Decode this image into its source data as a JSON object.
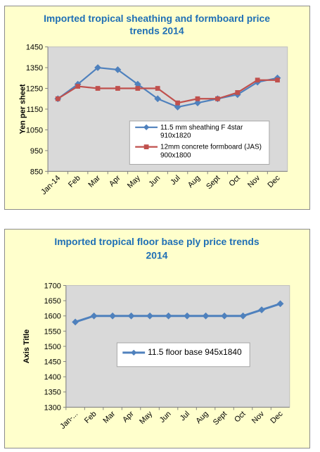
{
  "chart_data": [
    {
      "type": "line",
      "title_lines": [
        "Imported tropical sheathing and formboard price",
        "trends 2014"
      ],
      "ylabel": "Yen per sheet",
      "xlabel": "",
      "categories": [
        "Jan-14",
        "Feb",
        "Mar",
        "Apr",
        "May",
        "Jun",
        "Jul",
        "Aug",
        "Sept",
        "Oct",
        "Nov",
        "Dec"
      ],
      "ylim": [
        850,
        1450
      ],
      "yticks": [
        850,
        950,
        1050,
        1150,
        1250,
        1350,
        1450
      ],
      "grid": false,
      "legend_position": "center-right",
      "series": [
        {
          "name_lines": [
            "11.5 mm sheathing F 4star",
            "910x1820"
          ],
          "color": "#4f81bd",
          "marker": "diamond",
          "values": [
            1200,
            1270,
            1350,
            1340,
            1270,
            1200,
            1160,
            1180,
            1200,
            1220,
            1280,
            1300
          ]
        },
        {
          "name_lines": [
            "12mm concrete formboard (JAS)",
            "900x1800"
          ],
          "color": "#c0504d",
          "marker": "square",
          "values": [
            1200,
            1260,
            1250,
            1250,
            1250,
            1250,
            1180,
            1200,
            1200,
            1230,
            1290,
            1290
          ]
        }
      ]
    },
    {
      "type": "line",
      "title_lines": [
        "Imported tropical floor base ply price trends",
        "2014"
      ],
      "ylabel": "Axis Title",
      "xlabel": "",
      "categories": [
        "Jan-...",
        "Feb",
        "Mar",
        "Apr",
        "May",
        "Jun",
        "Jul",
        "Aug",
        "Sept",
        "Oct",
        "Nov",
        "Dec"
      ],
      "ylim": [
        1300,
        1700
      ],
      "yticks": [
        1300,
        1350,
        1400,
        1450,
        1500,
        1550,
        1600,
        1650,
        1700
      ],
      "grid": false,
      "legend_position": "center-bottom",
      "series": [
        {
          "name_lines": [
            "11.5 floor base 945x1840"
          ],
          "color": "#4f81bd",
          "marker": "diamond",
          "values": [
            1580,
            1600,
            1600,
            1600,
            1600,
            1600,
            1600,
            1600,
            1600,
            1600,
            1620,
            1640
          ]
        }
      ]
    }
  ]
}
